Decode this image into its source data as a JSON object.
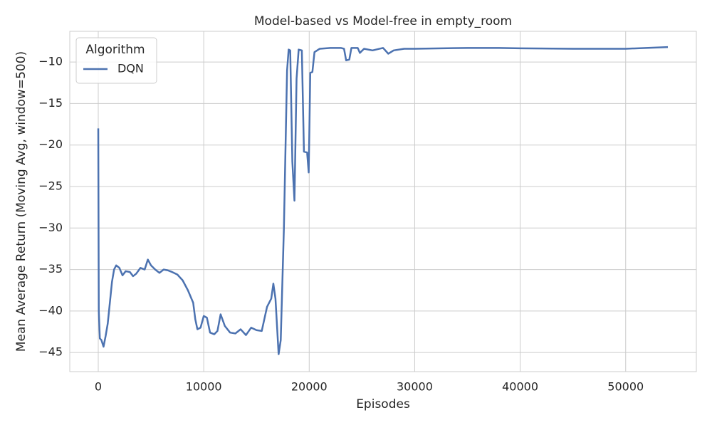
{
  "chart_data": {
    "type": "line",
    "title": "Model-based vs Model-free in empty_room",
    "x_label": "Episodes",
    "y_label": "Mean Average Return (Moving Avg, window=500)",
    "legend_title": "Algorithm",
    "legend_position": "upper left",
    "grid": true,
    "xlim": [
      -2700,
      56700
    ],
    "ylim": [
      -47.3,
      -6.3
    ],
    "xticks": [
      0,
      10000,
      20000,
      30000,
      40000,
      50000
    ],
    "yticks": [
      {
        "value": -45,
        "label": "−45"
      },
      {
        "value": -40,
        "label": "−40"
      },
      {
        "value": -35,
        "label": "−35"
      },
      {
        "value": -30,
        "label": "−30"
      },
      {
        "value": -25,
        "label": "−25"
      },
      {
        "value": -20,
        "label": "−20"
      },
      {
        "value": -15,
        "label": "−15"
      },
      {
        "value": -10,
        "label": "−10"
      }
    ],
    "x": [
      0,
      50,
      150,
      300,
      500,
      700,
      900,
      1100,
      1300,
      1500,
      1700,
      2000,
      2300,
      2600,
      3000,
      3300,
      3600,
      4000,
      4400,
      4700,
      5000,
      5400,
      5800,
      6200,
      6600,
      7000,
      7500,
      8000,
      8500,
      9000,
      9200,
      9400,
      9700,
      10000,
      10300,
      10600,
      11000,
      11300,
      11600,
      12000,
      12500,
      13000,
      13500,
      14000,
      14500,
      15000,
      15500,
      16000,
      16400,
      16600,
      16800,
      17100,
      17300,
      17600,
      17900,
      18050,
      18200,
      18400,
      18600,
      18800,
      19000,
      19300,
      19500,
      19800,
      19950,
      20100,
      20300,
      20500,
      21000,
      22000,
      23000,
      23300,
      23500,
      23800,
      24000,
      24600,
      24800,
      25200,
      26000,
      27000,
      27500,
      28000,
      29000,
      30000,
      35000,
      38000,
      40000,
      45000,
      50000,
      54000
    ],
    "series": [
      {
        "name": "DQN",
        "color": "#4c72b0",
        "values": [
          -18,
          -40,
          -43.3,
          -43.5,
          -44.3,
          -43,
          -41.5,
          -39,
          -36.5,
          -35,
          -34.5,
          -34.8,
          -35.7,
          -35.2,
          -35.3,
          -35.8,
          -35.5,
          -34.8,
          -35,
          -33.8,
          -34.5,
          -35,
          -35.4,
          -35,
          -35.1,
          -35.3,
          -35.6,
          -36.3,
          -37.5,
          -39,
          -41,
          -42.2,
          -42,
          -40.6,
          -40.8,
          -42.6,
          -42.8,
          -42.4,
          -40.4,
          -41.8,
          -42.6,
          -42.7,
          -42.2,
          -42.9,
          -42,
          -42.3,
          -42.4,
          -39.5,
          -38.5,
          -36.7,
          -38.5,
          -45.2,
          -43.5,
          -30,
          -11,
          -8.5,
          -8.6,
          -22,
          -26.7,
          -12,
          -8.5,
          -8.6,
          -20.8,
          -20.9,
          -23.3,
          -11.3,
          -11.2,
          -8.8,
          -8.4,
          -8.3,
          -8.3,
          -8.4,
          -9.8,
          -9.7,
          -8.3,
          -8.3,
          -8.9,
          -8.4,
          -8.6,
          -8.3,
          -9,
          -8.6,
          -8.4,
          -8.4,
          -8.3,
          -8.3,
          -8.35,
          -8.4,
          -8.4,
          -8.2
        ]
      }
    ]
  }
}
